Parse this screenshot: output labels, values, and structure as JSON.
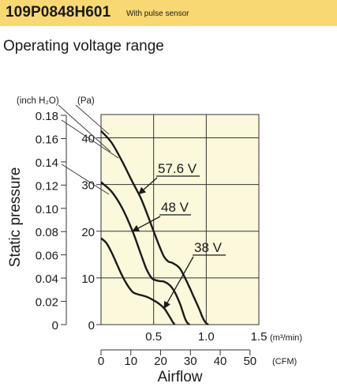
{
  "header": {
    "model": "109P0848H601",
    "note": "With pulse sensor",
    "bg_color": "#f7d873"
  },
  "subtitle": "Operating voltage range",
  "chart_data": {
    "type": "line",
    "plot_bg": "#fcf8dc",
    "grid": true,
    "xlabel": "Airflow",
    "ylabel": "Static pressure",
    "x_primary": {
      "unit": "(m³/min)",
      "range": [
        0,
        1.5
      ],
      "ticks": [
        0.5,
        1.0,
        1.5
      ],
      "tick_labels": [
        "0.5",
        "1.0",
        "1.5"
      ]
    },
    "x_secondary": {
      "unit": "(CFM)",
      "range": [
        0,
        52.97
      ],
      "ticks": [
        0,
        10,
        20,
        30,
        40,
        50
      ],
      "tick_labels": [
        "0",
        "10",
        "20",
        "30",
        "40",
        "50"
      ]
    },
    "y_primary": {
      "unit": "(Pa)",
      "range": [
        0,
        45
      ],
      "ticks": [
        0,
        10,
        20,
        30,
        40
      ],
      "tick_labels": [
        "0",
        "10",
        "20",
        "30",
        "40"
      ]
    },
    "y_secondary": {
      "unit": "(inch H₂O)",
      "range": [
        0,
        0.1807
      ],
      "ticks": [
        0,
        0.02,
        0.04,
        0.06,
        0.08,
        0.1,
        0.12,
        0.14,
        0.16,
        0.18
      ],
      "tick_labels": [
        "0",
        "0.02",
        "0.04",
        "0.06",
        "0.08",
        "0.10",
        "0.12",
        "0.14",
        "0.16",
        "0.18"
      ]
    },
    "series": [
      {
        "name": "57.6 V",
        "x": [
          0,
          0.1,
          0.2,
          0.3,
          0.38,
          0.45,
          0.5,
          0.56,
          0.6,
          0.64,
          0.68,
          0.75,
          0.83,
          0.88,
          0.93,
          0.96,
          0.98,
          1.0,
          1.02
        ],
        "y": [
          41.5,
          39.0,
          35.0,
          30.5,
          27.0,
          23.0,
          20.0,
          16.5,
          14.5,
          13.5,
          13.2,
          12.0,
          8.5,
          6.0,
          3.5,
          1.8,
          0.9,
          0.3,
          0
        ]
      },
      {
        "name": "48 V",
        "x": [
          0,
          0.1,
          0.2,
          0.3,
          0.38,
          0.43,
          0.48,
          0.52,
          0.56,
          0.6,
          0.65,
          0.7,
          0.75,
          0.78,
          0.8,
          0.82,
          0.84
        ],
        "y": [
          30.5,
          28.5,
          25.0,
          20.0,
          15.0,
          12.0,
          10.0,
          9.5,
          9.3,
          9.2,
          8.5,
          7.0,
          4.5,
          2.5,
          1.2,
          0.4,
          0
        ]
      },
      {
        "name": "38 V",
        "x": [
          0,
          0.05,
          0.1,
          0.15,
          0.2,
          0.25,
          0.3,
          0.35,
          0.4,
          0.45,
          0.5,
          0.55,
          0.6,
          0.63,
          0.66,
          0.68,
          0.7
        ],
        "y": [
          18.5,
          17.5,
          15.5,
          13.0,
          10.5,
          8.5,
          7.0,
          6.5,
          6.2,
          5.8,
          5.2,
          4.5,
          3.5,
          2.5,
          1.4,
          0.6,
          0
        ]
      }
    ],
    "annotations": [
      {
        "text": "57.6 V",
        "series": "57.6 V",
        "arrow_to": [
          0.36,
          28.0
        ]
      },
      {
        "text": "48 V",
        "series": "48 V",
        "arrow_to": [
          0.3,
          20.0
        ]
      },
      {
        "text": "38 V",
        "series": "38 V",
        "arrow_to": [
          0.6,
          3.5
        ]
      }
    ]
  }
}
